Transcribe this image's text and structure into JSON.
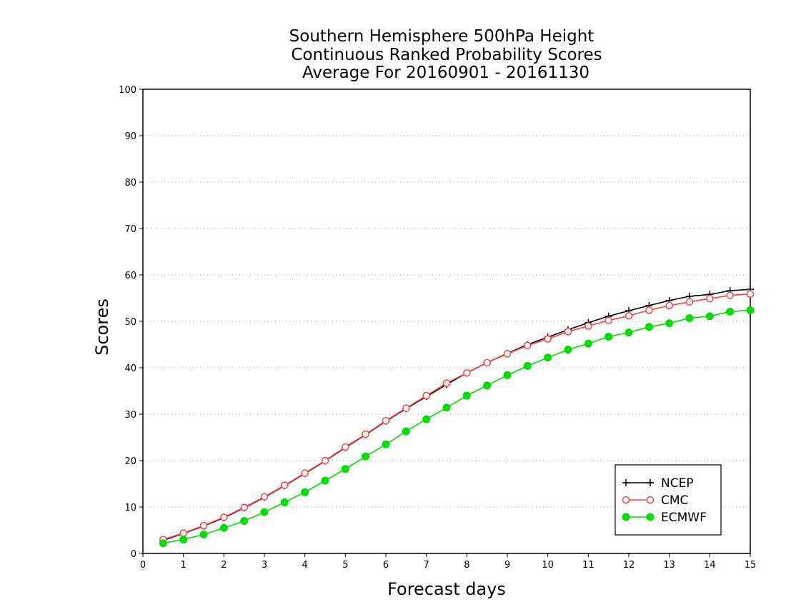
{
  "chart_data": {
    "type": "line",
    "title_lines": [
      "Southern Hemisphere 500hPa Height",
      "Continuous Ranked Probability Scores",
      "Average For 20160901 - 20161130"
    ],
    "xlabel": "Forecast days",
    "ylabel": "Scores",
    "xlim": [
      0,
      15
    ],
    "ylim": [
      0,
      100
    ],
    "x_ticks": [
      "0",
      "1",
      "2",
      "3",
      "4",
      "5",
      "6",
      "7",
      "8",
      "9",
      "10",
      "11",
      "12",
      "13",
      "14",
      "15"
    ],
    "y_ticks": [
      "0",
      "10",
      "20",
      "30",
      "40",
      "50",
      "60",
      "70",
      "80",
      "90",
      "100"
    ],
    "grid": "horizontal dotted",
    "legend_position": "bottom-right",
    "x": [
      0.5,
      1.0,
      1.5,
      2.0,
      2.5,
      3.0,
      3.5,
      4.0,
      4.5,
      5.0,
      5.5,
      6.0,
      6.5,
      7.0,
      7.5,
      8.0,
      8.5,
      9.0,
      9.5,
      10.0,
      10.5,
      11.0,
      11.5,
      12.0,
      12.5,
      13.0,
      13.5,
      14.0,
      14.5,
      15.0
    ],
    "series": [
      {
        "name": "NCEP",
        "color": "#000000",
        "marker": "plus",
        "values": [
          2.8,
          4.3,
          5.9,
          7.7,
          9.8,
          12.1,
          14.6,
          17.2,
          19.9,
          22.8,
          25.6,
          28.5,
          31.2,
          33.8,
          36.4,
          38.9,
          41.1,
          43.1,
          45.0,
          46.6,
          48.2,
          49.7,
          51.1,
          52.3,
          53.4,
          54.5,
          55.4,
          55.8,
          56.6,
          56.9
        ]
      },
      {
        "name": "CMC",
        "color": "#ff4040",
        "marker": "open-circle",
        "values": [
          3.0,
          4.4,
          6.0,
          7.8,
          9.9,
          12.2,
          14.7,
          17.3,
          20.0,
          22.9,
          25.7,
          28.6,
          31.3,
          34.0,
          36.7,
          38.9,
          41.1,
          43.0,
          44.8,
          46.2,
          47.8,
          49.0,
          50.2,
          51.2,
          52.4,
          53.4,
          54.2,
          54.9,
          55.6,
          55.9
        ]
      },
      {
        "name": "ECMWF",
        "color": "#00dd00",
        "marker": "filled-circle",
        "values": [
          2.2,
          3.0,
          4.1,
          5.5,
          7.0,
          8.9,
          11.0,
          13.2,
          15.7,
          18.2,
          20.9,
          23.5,
          26.3,
          28.9,
          31.4,
          34.0,
          36.2,
          38.4,
          40.4,
          42.2,
          43.9,
          45.2,
          46.7,
          47.6,
          48.8,
          49.6,
          50.7,
          51.1,
          52.1,
          52.4
        ]
      }
    ]
  }
}
